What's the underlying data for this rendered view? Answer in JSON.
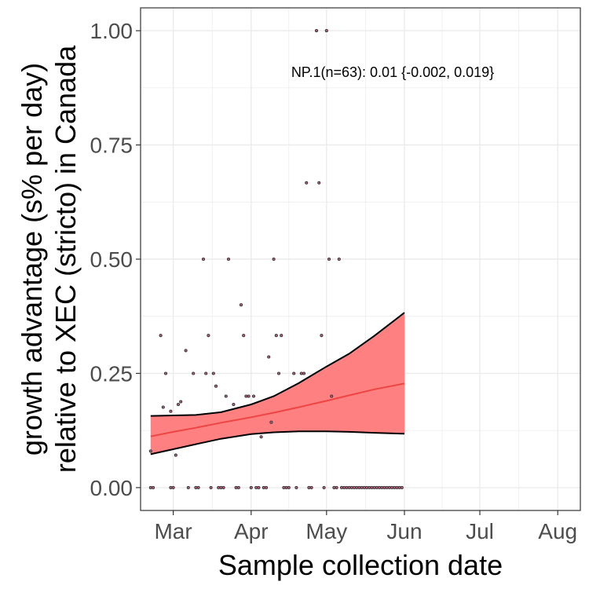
{
  "chart_data": {
    "type": "scatter",
    "xlabel": "Sample collection date",
    "ylabel_lines": [
      "growth advantage (s% per day)",
      "relative to XEC (stricto) in Canada"
    ],
    "annotation": "NP.1(n=63): 0.01 {-0.002, 0.019}",
    "x_ticks": [
      {
        "label": "Mar",
        "date": "2025-03-01"
      },
      {
        "label": "Apr",
        "date": "2025-04-01"
      },
      {
        "label": "May",
        "date": "2025-05-01"
      },
      {
        "label": "Jun",
        "date": "2025-06-01"
      },
      {
        "label": "Jul",
        "date": "2025-07-01"
      },
      {
        "label": "Aug",
        "date": "2025-08-01"
      }
    ],
    "y_ticks": [
      "0.00",
      "0.25",
      "0.50",
      "0.75",
      "1.00"
    ],
    "xlim": [
      "2025-02-16",
      "2025-08-10"
    ],
    "ylim": [
      -0.05,
      1.05
    ],
    "grid": true,
    "points": [
      {
        "x": "2025-02-20",
        "y": 0.08
      },
      {
        "x": "2025-02-24",
        "y": 0.333
      },
      {
        "x": "2025-02-25",
        "y": 0.176
      },
      {
        "x": "2025-02-26",
        "y": 0.25
      },
      {
        "x": "2025-02-28",
        "y": 0.167
      },
      {
        "x": "2025-03-02",
        "y": 0.071
      },
      {
        "x": "2025-03-03",
        "y": 0.182
      },
      {
        "x": "2025-03-04",
        "y": 0.188
      },
      {
        "x": "2025-03-06",
        "y": 0.3
      },
      {
        "x": "2025-03-09",
        "y": 0.25
      },
      {
        "x": "2025-03-13",
        "y": 0.5
      },
      {
        "x": "2025-03-14",
        "y": 0.25
      },
      {
        "x": "2025-03-15",
        "y": 0.333
      },
      {
        "x": "2025-03-17",
        "y": 0.25
      },
      {
        "x": "2025-03-18",
        "y": 0.222
      },
      {
        "x": "2025-03-22",
        "y": 0.2
      },
      {
        "x": "2025-03-23",
        "y": 0.5
      },
      {
        "x": "2025-03-25",
        "y": 0.182
      },
      {
        "x": "2025-03-28",
        "y": 0.4
      },
      {
        "x": "2025-03-29",
        "y": 0.333
      },
      {
        "x": "2025-03-30",
        "y": 0.2
      },
      {
        "x": "2025-03-31",
        "y": 0.2
      },
      {
        "x": "2025-04-02",
        "y": 0.2
      },
      {
        "x": "2025-04-05",
        "y": 0.111
      },
      {
        "x": "2025-04-08",
        "y": 0.286
      },
      {
        "x": "2025-04-09",
        "y": 0.143
      },
      {
        "x": "2025-04-10",
        "y": 0.5
      },
      {
        "x": "2025-04-11",
        "y": 0.333
      },
      {
        "x": "2025-04-12",
        "y": 0.25
      },
      {
        "x": "2025-04-13",
        "y": 0.333
      },
      {
        "x": "2025-04-18",
        "y": 0.25
      },
      {
        "x": "2025-04-21",
        "y": 0.25
      },
      {
        "x": "2025-04-22",
        "y": 0.25
      },
      {
        "x": "2025-04-23",
        "y": 0.667
      },
      {
        "x": "2025-04-27",
        "y": 1.0
      },
      {
        "x": "2025-04-28",
        "y": 0.667
      },
      {
        "x": "2025-04-29",
        "y": 0.333
      },
      {
        "x": "2025-05-01",
        "y": 1.0
      },
      {
        "x": "2025-05-02",
        "y": 0.5
      },
      {
        "x": "2025-05-03",
        "y": 0.2
      },
      {
        "x": "2025-05-06",
        "y": 0.5
      },
      {
        "x": "2025-02-20",
        "y": 0
      },
      {
        "x": "2025-02-21",
        "y": 0
      },
      {
        "x": "2025-02-28",
        "y": 0
      },
      {
        "x": "2025-03-01",
        "y": 0
      },
      {
        "x": "2025-03-07",
        "y": 0
      },
      {
        "x": "2025-03-10",
        "y": 0
      },
      {
        "x": "2025-03-11",
        "y": 0
      },
      {
        "x": "2025-03-16",
        "y": 0
      },
      {
        "x": "2025-03-19",
        "y": 0
      },
      {
        "x": "2025-03-20",
        "y": 0
      },
      {
        "x": "2025-03-21",
        "y": 0
      },
      {
        "x": "2025-03-26",
        "y": 0
      },
      {
        "x": "2025-03-27",
        "y": 0
      },
      {
        "x": "2025-04-01",
        "y": 0
      },
      {
        "x": "2025-04-03",
        "y": 0
      },
      {
        "x": "2025-04-04",
        "y": 0
      },
      {
        "x": "2025-04-06",
        "y": 0
      },
      {
        "x": "2025-04-07",
        "y": 0
      },
      {
        "x": "2025-04-14",
        "y": 0
      },
      {
        "x": "2025-04-15",
        "y": 0
      },
      {
        "x": "2025-04-16",
        "y": 0
      },
      {
        "x": "2025-04-19",
        "y": 0
      },
      {
        "x": "2025-04-24",
        "y": 0
      },
      {
        "x": "2025-04-25",
        "y": 0
      },
      {
        "x": "2025-04-30",
        "y": 0
      },
      {
        "x": "2025-05-04",
        "y": 0
      },
      {
        "x": "2025-05-05",
        "y": 0
      },
      {
        "x": "2025-05-07",
        "y": 0
      },
      {
        "x": "2025-05-08",
        "y": 0
      },
      {
        "x": "2025-05-09",
        "y": 0
      },
      {
        "x": "2025-05-10",
        "y": 0
      },
      {
        "x": "2025-05-11",
        "y": 0
      },
      {
        "x": "2025-05-12",
        "y": 0
      },
      {
        "x": "2025-05-13",
        "y": 0
      },
      {
        "x": "2025-05-14",
        "y": 0
      },
      {
        "x": "2025-05-15",
        "y": 0
      },
      {
        "x": "2025-05-16",
        "y": 0
      },
      {
        "x": "2025-05-17",
        "y": 0
      },
      {
        "x": "2025-05-18",
        "y": 0
      },
      {
        "x": "2025-05-19",
        "y": 0
      },
      {
        "x": "2025-05-20",
        "y": 0
      },
      {
        "x": "2025-05-21",
        "y": 0
      },
      {
        "x": "2025-05-22",
        "y": 0
      },
      {
        "x": "2025-05-23",
        "y": 0
      },
      {
        "x": "2025-05-24",
        "y": 0
      },
      {
        "x": "2025-05-25",
        "y": 0
      },
      {
        "x": "2025-05-26",
        "y": 0
      },
      {
        "x": "2025-05-27",
        "y": 0
      },
      {
        "x": "2025-05-28",
        "y": 0
      },
      {
        "x": "2025-05-29",
        "y": 0
      },
      {
        "x": "2025-05-30",
        "y": 0
      },
      {
        "x": "2025-05-31",
        "y": 0
      }
    ],
    "fit": {
      "x": [
        "2025-02-20",
        "2025-03-01",
        "2025-03-10",
        "2025-03-20",
        "2025-04-01",
        "2025-04-10",
        "2025-04-20",
        "2025-05-01",
        "2025-05-10",
        "2025-05-20",
        "2025-06-01"
      ],
      "mid": [
        0.112,
        0.122,
        0.131,
        0.142,
        0.154,
        0.164,
        0.176,
        0.19,
        0.202,
        0.215,
        0.228
      ],
      "lower": [
        0.073,
        0.084,
        0.095,
        0.107,
        0.117,
        0.121,
        0.123,
        0.123,
        0.122,
        0.12,
        0.118
      ],
      "upper": [
        0.157,
        0.158,
        0.159,
        0.165,
        0.182,
        0.2,
        0.229,
        0.265,
        0.293,
        0.332,
        0.383
      ]
    },
    "colors": {
      "band_fill": "#ff8080",
      "band_edge": "#000000",
      "fit_line": "#ee4444",
      "point_fill": "#c06080",
      "point_edge": "#333333",
      "grid": "#ebebeb",
      "panel_border": "#333333"
    }
  }
}
